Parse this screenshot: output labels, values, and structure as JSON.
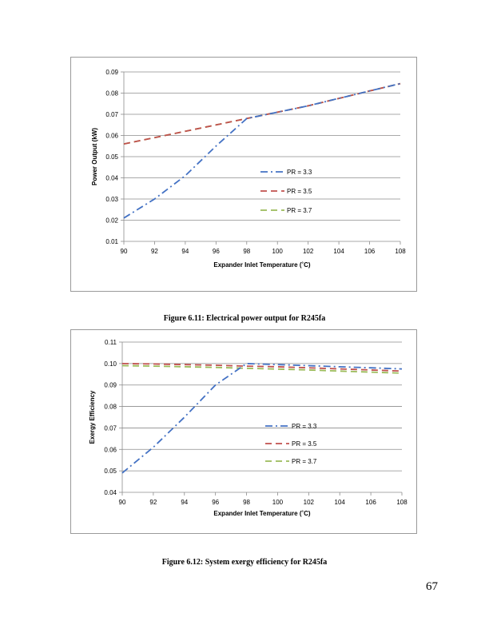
{
  "chart_data": [
    {
      "type": "line",
      "xlabel": "Expander Inlet Temperature (˚C)",
      "ylabel": "Power Output (kW)",
      "xlim": [
        90,
        108
      ],
      "ylim": [
        0.01,
        0.09
      ],
      "x_ticks": [
        "90",
        "92",
        "94",
        "96",
        "98",
        "100",
        "102",
        "104",
        "106",
        "108"
      ],
      "y_ticks": [
        "0.01",
        "0.02",
        "0.03",
        "0.04",
        "0.05",
        "0.06",
        "0.07",
        "0.08",
        "0.09"
      ],
      "x_tick_values": [
        90,
        92,
        94,
        96,
        98,
        100,
        102,
        104,
        106,
        108
      ],
      "y_tick_values": [
        0.01,
        0.02,
        0.03,
        0.04,
        0.05,
        0.06,
        0.07,
        0.08,
        0.09
      ],
      "grid": true,
      "legend_position": "right-center",
      "series": [
        {
          "name": "PR = 3.3",
          "color": "#4472C4",
          "dash": "dash-dot",
          "x": [
            90,
            92,
            94,
            96,
            98,
            100,
            102,
            104,
            106,
            108
          ],
          "y": [
            0.021,
            0.03,
            0.041,
            0.055,
            0.068,
            0.071,
            0.074,
            0.0775,
            0.081,
            0.0845
          ]
        },
        {
          "name": "PR = 3.5",
          "color": "#C0504D",
          "dash": "dash",
          "x": [
            90,
            92,
            94,
            96,
            98,
            100,
            102,
            104,
            106,
            108
          ],
          "y": [
            0.056,
            0.059,
            0.062,
            0.065,
            0.068,
            0.071,
            0.074,
            0.0775,
            0.081,
            0.0845
          ]
        },
        {
          "name": "PR = 3.7",
          "color": "#9BBB59",
          "dash": "dash",
          "x": [
            90,
            92,
            94,
            96,
            98,
            100,
            102,
            104,
            106,
            108
          ],
          "y": [
            0.056,
            0.059,
            0.062,
            0.065,
            0.068,
            0.071,
            0.074,
            0.0775,
            0.081,
            0.0845
          ]
        }
      ]
    },
    {
      "type": "line",
      "xlabel": "Expander Inlet Temperature (˚C)",
      "ylabel": "Exergy Efficiency",
      "xlim": [
        90,
        108
      ],
      "ylim": [
        0.04,
        0.11
      ],
      "x_ticks": [
        "90",
        "92",
        "94",
        "96",
        "98",
        "100",
        "102",
        "104",
        "106",
        "108"
      ],
      "y_ticks": [
        "0.04",
        "0.05",
        "0.06",
        "0.07",
        "0.08",
        "0.09",
        "0.10",
        "0.11"
      ],
      "x_tick_values": [
        90,
        92,
        94,
        96,
        98,
        100,
        102,
        104,
        106,
        108
      ],
      "y_tick_values": [
        0.04,
        0.05,
        0.06,
        0.07,
        0.08,
        0.09,
        0.1,
        0.11
      ],
      "grid": true,
      "legend_position": "right-center",
      "series": [
        {
          "name": "PR = 3.3",
          "color": "#4472C4",
          "dash": "dash-dot",
          "x": [
            90,
            92,
            94,
            96,
            98,
            100,
            102,
            104,
            106,
            108
          ],
          "y": [
            0.049,
            0.061,
            0.075,
            0.09,
            0.1,
            0.0995,
            0.099,
            0.0985,
            0.098,
            0.0975
          ]
        },
        {
          "name": "PR = 3.5",
          "color": "#C0504D",
          "dash": "dash",
          "x": [
            90,
            92,
            94,
            96,
            98,
            100,
            102,
            104,
            106,
            108
          ],
          "y": [
            0.1,
            0.0998,
            0.0995,
            0.0992,
            0.0988,
            0.0985,
            0.098,
            0.0975,
            0.097,
            0.0965
          ]
        },
        {
          "name": "PR = 3.7",
          "color": "#9BBB59",
          "dash": "dash",
          "x": [
            90,
            92,
            94,
            96,
            98,
            100,
            102,
            104,
            106,
            108
          ],
          "y": [
            0.099,
            0.0988,
            0.0985,
            0.0982,
            0.0978,
            0.0974,
            0.097,
            0.0965,
            0.096,
            0.0955
          ]
        }
      ]
    }
  ],
  "captions": [
    "Figure 6.11: Electrical power output for R245fa",
    "Figure 6.12: System exergy efficiency for R245fa"
  ],
  "page_number": "67"
}
